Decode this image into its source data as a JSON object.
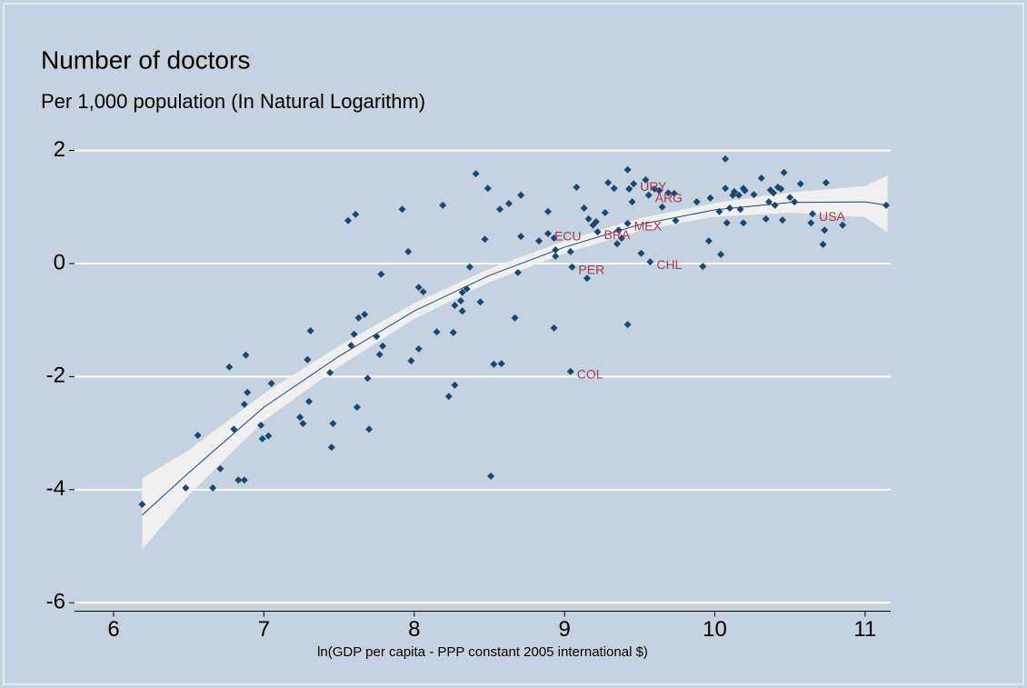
{
  "chart_data": {
    "type": "scatter",
    "title": "Number of doctors",
    "subtitle": "Per 1,000 population (In Natural Logarithm)",
    "x_label": "ln(GDP per capita - PPP constant 2005 international $)",
    "xlim": [
      5.74,
      11.17
    ],
    "ylim": [
      -6.15,
      2.4
    ],
    "xticks": [
      6,
      7,
      8,
      9,
      10,
      11
    ],
    "yticks": [
      2,
      0,
      -2,
      -4,
      -6
    ],
    "grid": true,
    "point_color": "#1a476f",
    "fit_color": "#1a476f",
    "band_color": "#f0f0f0",
    "annotation_color": "#a8384c",
    "x": [
      6.19,
      6.48,
      6.56,
      6.66,
      6.71,
      6.77,
      6.8,
      6.83,
      6.87,
      6.87,
      6.88,
      6.89,
      6.98,
      6.99,
      7.03,
      7.05,
      7.24,
      7.26,
      7.29,
      7.3,
      7.31,
      7.44,
      7.45,
      7.46,
      7.56,
      7.58,
      7.6,
      7.61,
      7.62,
      7.63,
      7.67,
      7.69,
      7.7,
      7.75,
      7.77,
      7.78,
      7.79,
      7.92,
      7.96,
      7.98,
      8.03,
      8.03,
      8.06,
      8.15,
      8.19,
      8.23,
      8.27,
      8.26,
      8.27,
      8.31,
      8.32,
      8.32,
      8.35,
      8.37,
      8.41,
      8.44,
      8.47,
      8.49,
      8.51,
      8.53,
      8.57,
      8.58,
      8.63,
      8.67,
      8.69,
      8.71,
      8.71,
      8.83,
      8.89,
      8.89,
      8.93,
      8.94,
      8.93,
      8.94,
      9.04,
      9.04,
      9.05,
      9.08,
      9.13,
      9.15,
      9.16,
      9.19,
      9.21,
      9.22,
      9.27,
      9.29,
      9.33,
      9.35,
      9.36,
      9.38,
      9.42,
      9.42,
      9.42,
      9.43,
      9.45,
      9.46,
      9.51,
      9.54,
      9.56,
      9.57,
      9.6,
      9.63,
      9.65,
      9.69,
      9.74,
      9.73,
      9.88,
      9.92,
      9.96,
      9.97,
      10.03,
      10.04,
      10.07,
      10.07,
      10.08,
      10.1,
      10.12,
      10.13,
      10.16,
      10.17,
      10.19,
      10.19,
      10.2,
      10.26,
      10.31,
      10.34,
      10.36,
      10.37,
      10.39,
      10.4,
      10.42,
      10.44,
      10.45,
      10.46,
      10.5,
      10.53,
      10.57,
      10.65,
      10.64,
      10.72,
      10.73,
      10.74,
      10.85,
      11.14
    ],
    "y": [
      -4.26,
      -3.97,
      -3.04,
      -3.97,
      -3.63,
      -1.83,
      -2.93,
      -3.83,
      -3.83,
      -2.49,
      -1.62,
      -2.28,
      -2.86,
      -3.1,
      -3.05,
      -2.12,
      -2.72,
      -2.83,
      -1.7,
      -2.44,
      -1.19,
      -1.93,
      -3.25,
      -2.83,
      0.76,
      -1.45,
      -1.25,
      0.87,
      -2.54,
      -0.96,
      -0.9,
      -2.03,
      -2.93,
      -1.29,
      -1.61,
      -0.19,
      -1.46,
      0.96,
      0.21,
      -1.72,
      -0.42,
      -1.51,
      -0.5,
      -1.21,
      1.03,
      -2.35,
      -2.15,
      -1.22,
      -0.74,
      -0.66,
      -0.84,
      -0.51,
      -0.45,
      -0.06,
      1.59,
      -0.68,
      0.43,
      1.33,
      -3.76,
      -1.78,
      0.96,
      -1.77,
      1.06,
      -0.96,
      -0.16,
      1.21,
      0.48,
      0.4,
      0.92,
      0.53,
      0.45,
      0.13,
      -1.14,
      0.24,
      -1.91,
      0.21,
      -0.06,
      1.35,
      0.98,
      -0.26,
      0.79,
      0.68,
      0.74,
      0.56,
      0.9,
      1.43,
      1.33,
      0.35,
      0.59,
      0.45,
      1.66,
      -1.08,
      0.71,
      1.32,
      1.09,
      1.41,
      0.18,
      1.48,
      1.21,
      0.03,
      1.32,
      1.29,
      1.0,
      1.25,
      0.76,
      1.24,
      1.09,
      -0.05,
      0.4,
      1.16,
      0.92,
      0.16,
      1.85,
      1.33,
      0.72,
      0.98,
      1.21,
      1.27,
      1.21,
      0.96,
      0.72,
      1.33,
      1.29,
      1.22,
      1.51,
      0.79,
      1.09,
      1.3,
      1.25,
      1.03,
      1.35,
      1.32,
      0.77,
      1.61,
      1.17,
      1.09,
      1.41,
      0.88,
      0.72,
      0.34,
      0.59,
      1.43,
      0.68,
      1.03
    ],
    "fit_x": [
      6.19,
      6.5,
      7,
      7.5,
      8,
      8.5,
      9,
      9.5,
      10,
      10.5,
      11,
      11.15
    ],
    "fit_y": [
      -4.45,
      -3.7,
      -2.54,
      -1.64,
      -0.84,
      -0.21,
      0.29,
      0.69,
      0.95,
      1.08,
      1.09,
      1.03
    ],
    "ci_lower": [
      -5.05,
      -4.1,
      -2.78,
      -1.82,
      -0.98,
      -0.33,
      0.18,
      0.58,
      0.83,
      0.9,
      0.82,
      0.55
    ],
    "ci_upper": [
      -3.8,
      -3.3,
      -2.3,
      -1.46,
      -0.7,
      -0.09,
      0.4,
      0.8,
      1.07,
      1.26,
      1.37,
      1.56
    ],
    "annotations": [
      {
        "text": "URY",
        "x": 9.46,
        "y": 1.41
      },
      {
        "text": "ARG",
        "x": 9.56,
        "y": 1.21
      },
      {
        "text": "ECU",
        "x": 8.89,
        "y": 0.53
      },
      {
        "text": "BRA",
        "x": 9.22,
        "y": 0.56
      },
      {
        "text": "MEX",
        "x": 9.42,
        "y": 0.71
      },
      {
        "text": "PER",
        "x": 9.05,
        "y": -0.06
      },
      {
        "text": "CHL",
        "x": 9.57,
        "y": 0.03
      },
      {
        "text": "COL",
        "x": 9.04,
        "y": -1.91
      },
      {
        "text": "USA",
        "x": 10.65,
        "y": 0.88
      }
    ]
  }
}
